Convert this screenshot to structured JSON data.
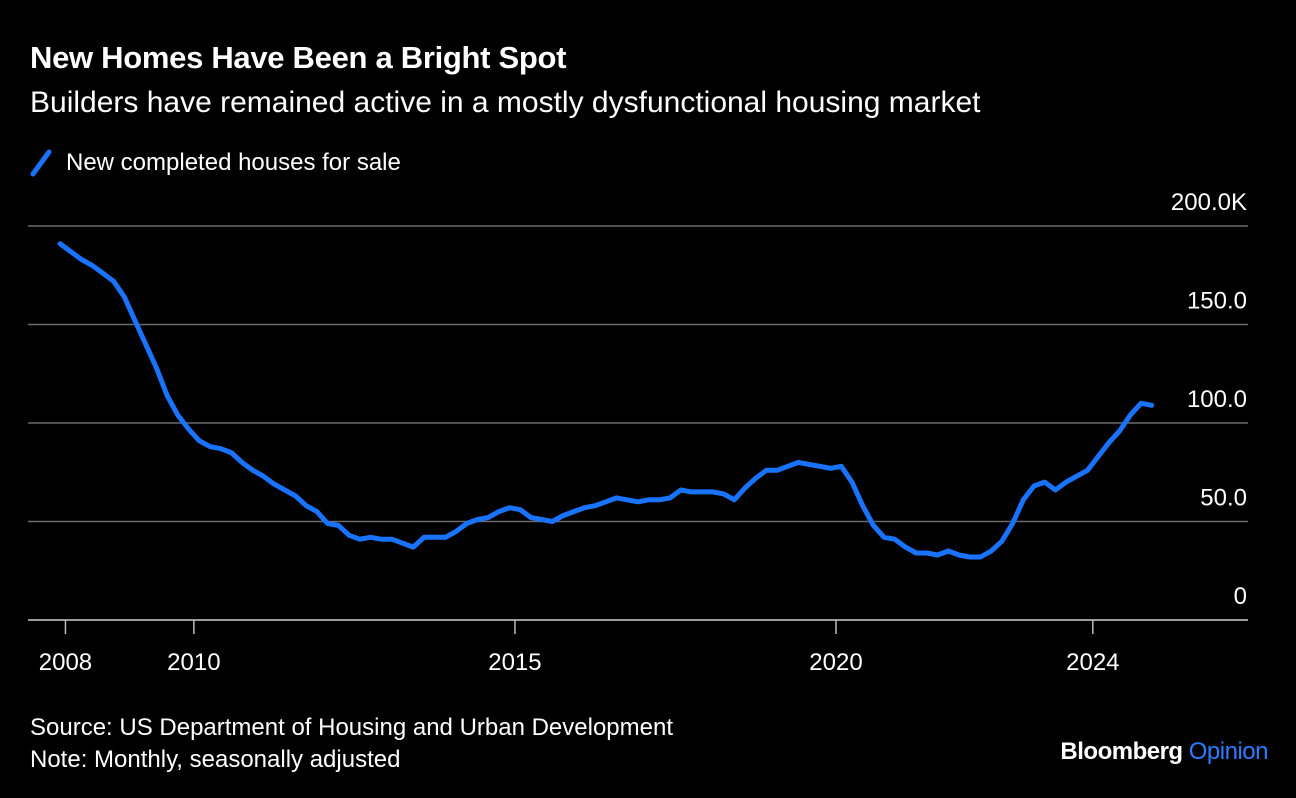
{
  "title": "New Homes Have Been a Bright Spot",
  "subtitle": "Builders have remained active in a mostly dysfunctional housing market",
  "colors": {
    "background": "#000000",
    "line": "#1a73ff",
    "grid": "#6b6b6b",
    "text": "#ffffff",
    "brand_accent": "#2f7bff"
  },
  "footer": {
    "source": "Source: US Department of Housing and Urban Development",
    "note": "Note: Monthly, seasonally adjusted"
  },
  "brand": {
    "name": "Bloomberg",
    "section": "Opinion"
  },
  "chart_data": {
    "type": "line",
    "title": "New Homes Have Been a Bright Spot",
    "subtitle": "Builders have remained active in a mostly dysfunctional housing market",
    "xlabel": "",
    "ylabel": "",
    "ylim": [
      0,
      200
    ],
    "xlim": [
      "2007-06",
      "2026-06"
    ],
    "y_ticks": [
      0,
      50,
      100,
      150,
      200
    ],
    "y_tick_labels": [
      "0",
      "50.0",
      "100.0",
      "150.0",
      "200.0K"
    ],
    "x_ticks": [
      "2008-01",
      "2010-01",
      "2015-01",
      "2020-01",
      "2024-01"
    ],
    "x_tick_labels": [
      "2008",
      "2010",
      "2015",
      "2020",
      "2024"
    ],
    "grid": true,
    "legend_position": "top-left",
    "series": [
      {
        "name": "New completed houses for sale",
        "color": "#1a73ff",
        "points": [
          [
            "2007-12",
            191
          ],
          [
            "2008-02",
            187
          ],
          [
            "2008-04",
            183
          ],
          [
            "2008-06",
            180
          ],
          [
            "2008-08",
            176
          ],
          [
            "2008-10",
            172
          ],
          [
            "2008-12",
            164
          ],
          [
            "2009-02",
            152
          ],
          [
            "2009-04",
            140
          ],
          [
            "2009-06",
            128
          ],
          [
            "2009-08",
            114
          ],
          [
            "2009-10",
            104
          ],
          [
            "2009-12",
            97
          ],
          [
            "2010-02",
            91
          ],
          [
            "2010-04",
            88
          ],
          [
            "2010-06",
            87
          ],
          [
            "2010-08",
            85
          ],
          [
            "2010-10",
            80
          ],
          [
            "2010-12",
            76
          ],
          [
            "2011-02",
            73
          ],
          [
            "2011-04",
            69
          ],
          [
            "2011-06",
            66
          ],
          [
            "2011-08",
            63
          ],
          [
            "2011-10",
            58
          ],
          [
            "2011-12",
            55
          ],
          [
            "2012-02",
            49
          ],
          [
            "2012-04",
            48
          ],
          [
            "2012-06",
            43
          ],
          [
            "2012-08",
            41
          ],
          [
            "2012-10",
            42
          ],
          [
            "2012-12",
            41
          ],
          [
            "2013-02",
            41
          ],
          [
            "2013-04",
            39
          ],
          [
            "2013-06",
            37
          ],
          [
            "2013-08",
            42
          ],
          [
            "2013-10",
            42
          ],
          [
            "2013-12",
            42
          ],
          [
            "2014-02",
            45
          ],
          [
            "2014-04",
            49
          ],
          [
            "2014-06",
            51
          ],
          [
            "2014-08",
            52
          ],
          [
            "2014-10",
            55
          ],
          [
            "2014-12",
            57
          ],
          [
            "2015-02",
            56
          ],
          [
            "2015-04",
            52
          ],
          [
            "2015-06",
            51
          ],
          [
            "2015-08",
            50
          ],
          [
            "2015-10",
            53
          ],
          [
            "2015-12",
            55
          ],
          [
            "2016-02",
            57
          ],
          [
            "2016-04",
            58
          ],
          [
            "2016-06",
            60
          ],
          [
            "2016-08",
            62
          ],
          [
            "2016-10",
            61
          ],
          [
            "2016-12",
            60
          ],
          [
            "2017-02",
            61
          ],
          [
            "2017-04",
            61
          ],
          [
            "2017-06",
            62
          ],
          [
            "2017-08",
            66
          ],
          [
            "2017-10",
            65
          ],
          [
            "2017-12",
            65
          ],
          [
            "2018-02",
            65
          ],
          [
            "2018-04",
            64
          ],
          [
            "2018-06",
            61
          ],
          [
            "2018-08",
            67
          ],
          [
            "2018-10",
            72
          ],
          [
            "2018-12",
            76
          ],
          [
            "2019-02",
            76
          ],
          [
            "2019-04",
            78
          ],
          [
            "2019-06",
            80
          ],
          [
            "2019-08",
            79
          ],
          [
            "2019-10",
            78
          ],
          [
            "2019-12",
            77
          ],
          [
            "2020-02",
            78
          ],
          [
            "2020-04",
            70
          ],
          [
            "2020-06",
            58
          ],
          [
            "2020-08",
            48
          ],
          [
            "2020-10",
            42
          ],
          [
            "2020-12",
            41
          ],
          [
            "2021-02",
            37
          ],
          [
            "2021-04",
            34
          ],
          [
            "2021-06",
            34
          ],
          [
            "2021-08",
            33
          ],
          [
            "2021-10",
            35
          ],
          [
            "2021-12",
            33
          ],
          [
            "2022-02",
            32
          ],
          [
            "2022-04",
            32
          ],
          [
            "2022-06",
            35
          ],
          [
            "2022-08",
            40
          ],
          [
            "2022-10",
            49
          ],
          [
            "2022-12",
            61
          ],
          [
            "2023-02",
            68
          ],
          [
            "2023-04",
            70
          ],
          [
            "2023-06",
            66
          ],
          [
            "2023-08",
            70
          ],
          [
            "2023-10",
            73
          ],
          [
            "2023-12",
            76
          ],
          [
            "2024-02",
            83
          ],
          [
            "2024-04",
            90
          ],
          [
            "2024-06",
            96
          ],
          [
            "2024-08",
            104
          ],
          [
            "2024-10",
            110
          ],
          [
            "2024-12",
            109
          ]
        ]
      }
    ]
  }
}
